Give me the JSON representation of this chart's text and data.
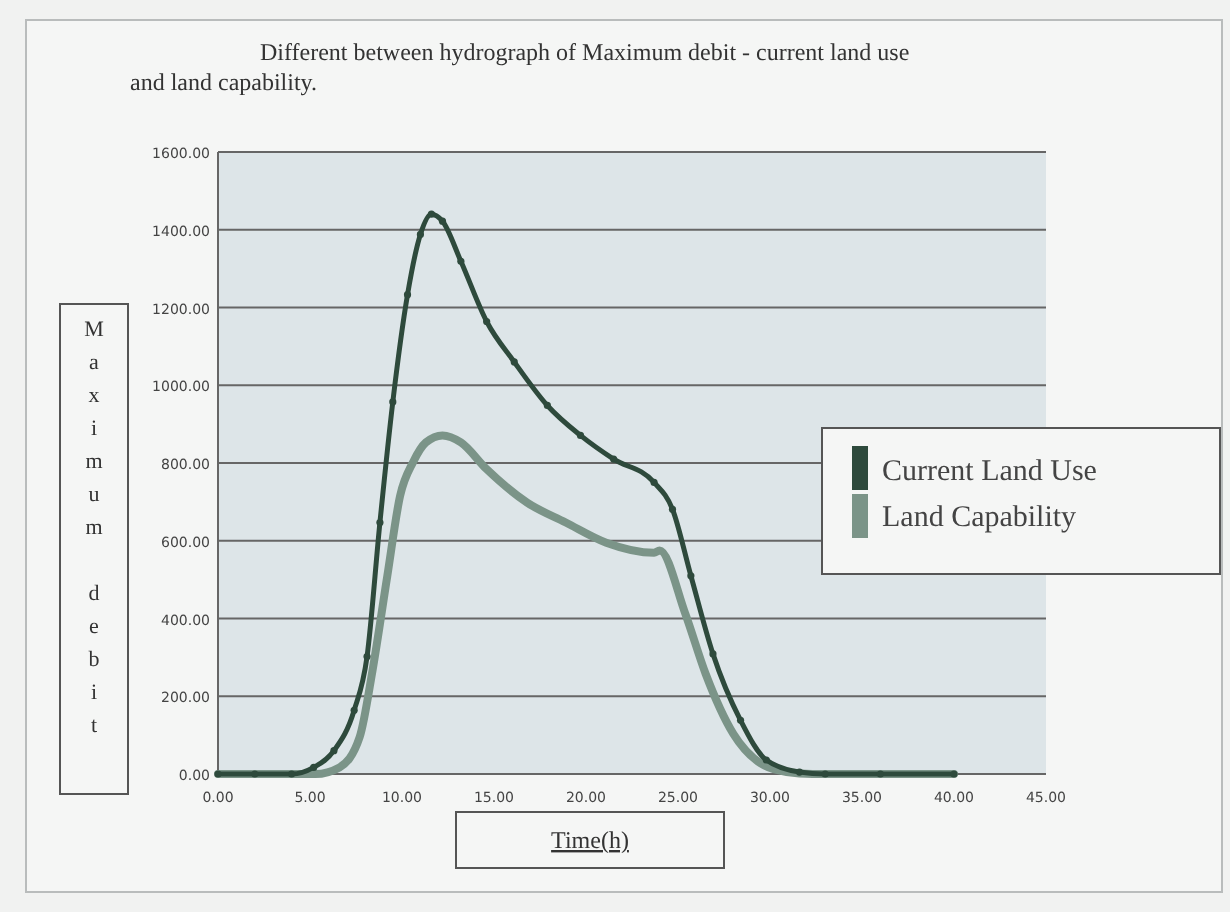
{
  "chart_data": {
    "type": "line",
    "title": "Different between hydrograph of Maximum debit - current land use\nand land capability.",
    "xlabel": "Time(h)",
    "ylabel": "Maximum debit",
    "xlim": [
      0,
      45
    ],
    "ylim": [
      0,
      1600
    ],
    "xticks": [
      {
        "value": 0,
        "label": "0.00"
      },
      {
        "value": 5,
        "label": "5.00"
      },
      {
        "value": 10,
        "label": "10.00"
      },
      {
        "value": 15,
        "label": "15.00"
      },
      {
        "value": 20,
        "label": "20.00"
      },
      {
        "value": 25,
        "label": "25.00"
      },
      {
        "value": 30,
        "label": "30.00"
      },
      {
        "value": 35,
        "label": "35.00"
      },
      {
        "value": 40,
        "label": "40.00"
      },
      {
        "value": 45,
        "label": "45.00"
      }
    ],
    "yticks": [
      {
        "value": 0,
        "label": "0.00"
      },
      {
        "value": 200,
        "label": "200.00"
      },
      {
        "value": 400,
        "label": "400.00"
      },
      {
        "value": 600,
        "label": "600.00"
      },
      {
        "value": 800,
        "label": "800.00"
      },
      {
        "value": 1000,
        "label": "1000.00"
      },
      {
        "value": 1200,
        "label": "1200.00"
      },
      {
        "value": 1400,
        "label": "1400.00"
      },
      {
        "value": 1600,
        "label": "1600.00"
      }
    ],
    "grid": "y",
    "legend": "right",
    "series": [
      {
        "name": "Current Land Use",
        "color": "#2e4a3c",
        "marker": "circle",
        "x": [
          0,
          2,
          4,
          5.2,
          6.3,
          7.4,
          8.1,
          8.8,
          9.5,
          10.3,
          11,
          11.6,
          12.2,
          13.2,
          14.6,
          16.1,
          17.9,
          19.7,
          21.5,
          23.7,
          24.7,
          25.7,
          26.9,
          28.4,
          29.8,
          31.6,
          33,
          36,
          40
        ],
        "values": [
          0,
          0,
          0,
          17,
          60,
          164,
          302,
          647,
          957,
          1233,
          1388,
          1440,
          1422,
          1319,
          1164,
          1060,
          948,
          871,
          810,
          750,
          681,
          510,
          309,
          138,
          36,
          5,
          0,
          0,
          0
        ]
      },
      {
        "name": "Land Capability",
        "color": "#7b9488",
        "marker": "none",
        "x": [
          0,
          2,
          4,
          5.3,
          6.6,
          7.7,
          8.4,
          9.2,
          9.9,
          10.6,
          11.3,
          12.2,
          13.2,
          14.6,
          16.8,
          18.9,
          21.1,
          23.7,
          24,
          25.4,
          26.5,
          28,
          29.5,
          30.9,
          32.3,
          36,
          40
        ],
        "values": [
          0,
          0,
          0,
          0,
          17,
          95,
          267,
          509,
          716,
          802,
          853,
          871,
          853,
          784,
          698,
          647,
          595,
          569,
          575,
          412,
          258,
          104,
          27,
          5,
          0,
          0,
          0
        ]
      }
    ]
  }
}
